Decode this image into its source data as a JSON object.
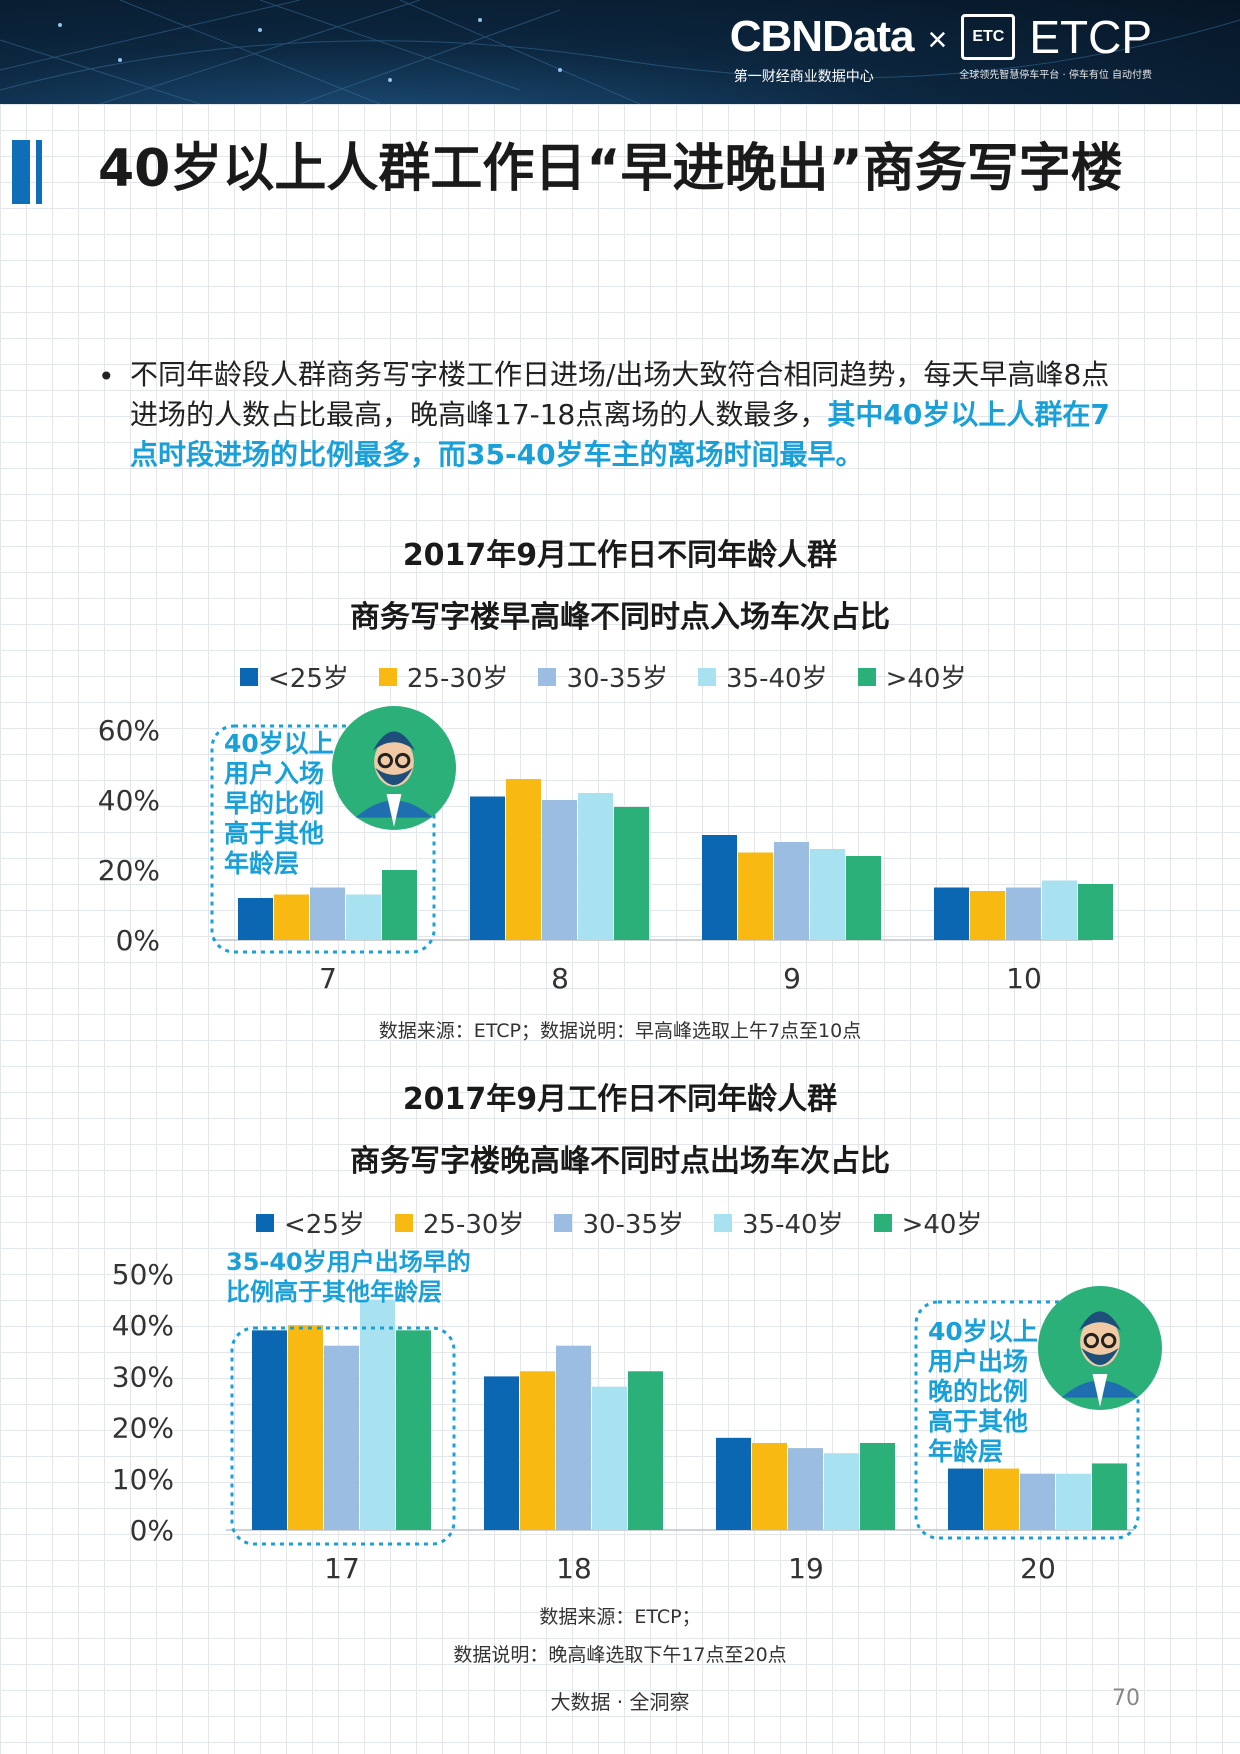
{
  "header": {
    "brand_main": "CBNData",
    "brand_x": "×",
    "brand_etc_logo": "ETC",
    "brand_partner": "ETCP",
    "brand_sub1": "第一财经商业数据中心",
    "brand_sub2": "全球领先智慧停车平台 · 停车有位 自动付费"
  },
  "title": "40岁以上人群工作日“早进晚出”商务写字楼",
  "bullet": {
    "dot": "•",
    "text_normal": "不同年龄段人群商务写字楼工作日进场/出场大致符合相同趋势，每天早高峰8点进场的人数占比最高，晚高峰17-18点离场的人数最多，",
    "text_highlight": "其中40岁以上人群在7点时段进场的比例最多，而35-40岁车主的离场时间最早。"
  },
  "colors": {
    "s1": "#0b67b2",
    "s2": "#f7b912",
    "s3": "#9bbde2",
    "s4": "#a8e1ef",
    "s5": "#2bb07a",
    "annotation": "#1aa0d8"
  },
  "chart_data": [
    {
      "type": "bar",
      "title": "2017年9月工作日不同年龄人群",
      "subtitle": "商务写字楼早高峰不同时点入场车次占比",
      "categories": [
        "7",
        "8",
        "9",
        "10"
      ],
      "series": [
        {
          "name": "<25岁",
          "values": [
            12,
            41,
            30,
            15
          ]
        },
        {
          "name": "25-30岁",
          "values": [
            13,
            46,
            25,
            14
          ]
        },
        {
          "name": "30-35岁",
          "values": [
            15,
            40,
            28,
            15
          ]
        },
        {
          "name": "35-40岁",
          "values": [
            13,
            42,
            26,
            17
          ]
        },
        {
          "name": ">40岁",
          "values": [
            20,
            38,
            24,
            16
          ]
        }
      ],
      "y_ticks": [
        "0%",
        "20%",
        "40%",
        "60%"
      ],
      "ylim": [
        0,
        60
      ],
      "grid": false,
      "legend_position": "top",
      "annotation": "40岁以上用户入场早的比例高于其他年龄层",
      "annotation_lines": [
        "40岁以上",
        "用户入场",
        "早的比例",
        "高于其他",
        "年龄层"
      ],
      "source": "数据来源：ETCP；数据说明：早高峰选取上午7点至10点"
    },
    {
      "type": "bar",
      "title": "2017年9月工作日不同年龄人群",
      "subtitle": "商务写字楼晚高峰不同时点出场车次占比",
      "categories": [
        "17",
        "18",
        "19",
        "20"
      ],
      "series": [
        {
          "name": "<25岁",
          "values": [
            39,
            30,
            18,
            12
          ]
        },
        {
          "name": "25-30岁",
          "values": [
            40,
            31,
            17,
            12
          ]
        },
        {
          "name": "30-35岁",
          "values": [
            36,
            36,
            16,
            11
          ]
        },
        {
          "name": "35-40岁",
          "values": [
            45,
            28,
            15,
            11
          ]
        },
        {
          "name": ">40岁",
          "values": [
            39,
            31,
            17,
            13
          ]
        }
      ],
      "y_ticks": [
        "0%",
        "10%",
        "20%",
        "30%",
        "40%",
        "50%"
      ],
      "ylim": [
        0,
        50
      ],
      "grid": false,
      "legend_position": "top",
      "annotation_left": "35-40岁用户出场早的比例高于其他年龄层",
      "annotation_left_lines": [
        "35-40岁用户出场早的",
        "比例高于其他年龄层"
      ],
      "annotation_right": "40岁以上用户出场晚的比例高于其他年龄层",
      "annotation_right_lines": [
        "40岁以上",
        "用户出场",
        "晚的比例",
        "高于其他",
        "年龄层"
      ],
      "source_line1": "数据来源：ETCP；",
      "source_line2": "数据说明：晚高峰选取下午17点至20点"
    }
  ],
  "footer": {
    "text": "大数据 · 全洞察",
    "page_number": "70"
  }
}
